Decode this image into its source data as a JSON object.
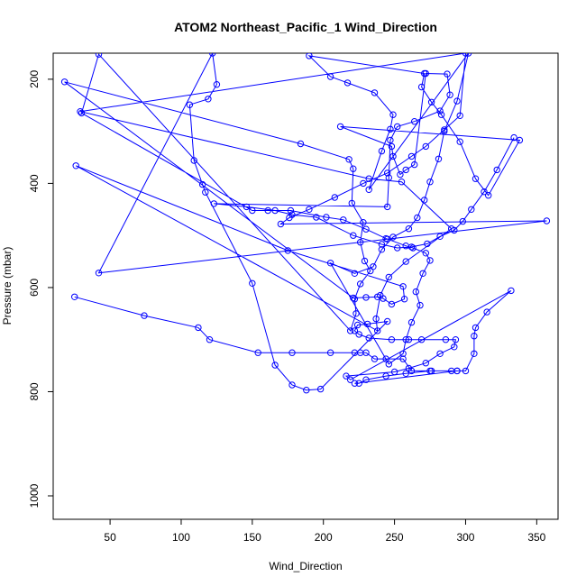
{
  "chart_data": {
    "type": "scatter",
    "title": "ATOM2 Northeast_Pacific_1 Wind_Direction",
    "xlabel": "Wind_Direction",
    "ylabel": "Pressure (mbar)",
    "xlim": [
      10,
      365
    ],
    "ylim": [
      1045,
      150
    ],
    "y_reversed": true,
    "x_ticks": [
      50,
      100,
      150,
      200,
      250,
      300,
      350
    ],
    "y_ticks": [
      200,
      400,
      600,
      800,
      1000
    ],
    "grid": false,
    "legend": "none",
    "colors": {
      "series": "#0000ff"
    },
    "series": [
      {
        "marker": "open-circle",
        "connected": true,
        "points": [
          [
            25,
            618
          ],
          [
            74,
            654
          ],
          [
            112,
            677
          ],
          [
            120,
            700
          ],
          [
            154,
            725
          ],
          [
            178,
            725
          ],
          [
            205,
            725
          ],
          [
            222,
            725
          ],
          [
            226,
            725
          ],
          [
            230,
            725
          ],
          [
            236,
            737
          ],
          [
            244,
            737
          ],
          [
            256,
            737
          ],
          [
            262,
            760
          ],
          [
            276,
            760
          ],
          [
            290,
            760
          ],
          [
            294,
            760
          ],
          [
            222,
            784
          ],
          [
            225,
            784
          ],
          [
            230,
            777
          ],
          [
            244,
            770
          ],
          [
            258,
            765
          ],
          [
            275,
            760
          ],
          [
            294,
            760
          ],
          [
            300,
            760
          ],
          [
            306,
            727
          ],
          [
            306,
            693
          ],
          [
            307,
            677
          ],
          [
            315,
            647
          ],
          [
            332,
            606
          ],
          [
            219,
            777
          ],
          [
            216,
            770
          ],
          [
            250,
            762
          ],
          [
            260,
            755
          ],
          [
            272,
            745
          ],
          [
            282,
            727
          ],
          [
            292,
            714
          ],
          [
            293,
            700
          ],
          [
            286,
            700
          ],
          [
            269,
            700
          ],
          [
            260,
            700
          ],
          [
            248,
            700
          ],
          [
            232,
            697
          ],
          [
            225,
            690
          ],
          [
            222,
            683
          ],
          [
            224,
            672
          ],
          [
            231,
            670
          ],
          [
            245,
            665
          ],
          [
            198,
            795
          ],
          [
            188,
            797
          ],
          [
            178,
            787
          ],
          [
            166,
            749
          ],
          [
            150,
            592
          ],
          [
            117,
            417
          ],
          [
            115,
            402
          ],
          [
            109,
            356
          ],
          [
            106,
            249
          ],
          [
            119,
            238
          ],
          [
            125,
            210
          ],
          [
            122,
            150
          ],
          [
            42,
            572
          ],
          [
            245,
            507
          ],
          [
            357,
            472
          ],
          [
            170,
            478
          ],
          [
            176,
            466
          ],
          [
            190,
            450
          ],
          [
            208,
            427
          ],
          [
            228,
            400
          ],
          [
            245,
            380
          ],
          [
            262,
            348
          ],
          [
            272,
            329
          ],
          [
            285,
            297
          ],
          [
            296,
            270
          ],
          [
            300,
            150
          ],
          [
            29,
            262
          ],
          [
            232,
            391
          ],
          [
            255,
            397
          ],
          [
            290,
            487
          ],
          [
            258,
            550
          ],
          [
            246,
            580
          ],
          [
            240,
            615
          ],
          [
            237,
            660
          ],
          [
            238,
            683
          ],
          [
            26,
            366
          ],
          [
            175,
            529
          ],
          [
            256,
            598
          ],
          [
            257,
            622
          ],
          [
            248,
            632
          ],
          [
            242,
            621
          ],
          [
            238,
            618
          ],
          [
            230,
            619
          ],
          [
            221,
            620
          ],
          [
            18,
            205
          ],
          [
            184,
            324
          ],
          [
            218,
            354
          ],
          [
            221,
            372
          ],
          [
            220,
            438
          ],
          [
            228,
            475
          ],
          [
            226,
            513
          ],
          [
            229,
            549
          ],
          [
            233,
            568
          ],
          [
            226,
            593
          ],
          [
            222,
            622
          ],
          [
            223,
            650
          ],
          [
            219,
            683
          ],
          [
            42,
            152
          ],
          [
            30,
            265
          ],
          [
            150,
            452
          ],
          [
            161,
            452
          ],
          [
            177,
            452
          ],
          [
            202,
            465
          ],
          [
            214,
            470
          ],
          [
            230,
            488
          ],
          [
            244,
            506
          ],
          [
            258,
            520
          ],
          [
            263,
            524
          ],
          [
            272,
            534
          ],
          [
            275,
            548
          ],
          [
            270,
            573
          ],
          [
            265,
            608
          ],
          [
            268,
            634
          ],
          [
            262,
            667
          ],
          [
            258,
            700
          ],
          [
            256,
            727
          ],
          [
            246,
            747
          ],
          [
            205,
            553
          ],
          [
            222,
            573
          ],
          [
            235,
            560
          ],
          [
            241,
            527
          ],
          [
            249,
            503
          ],
          [
            260,
            487
          ],
          [
            266,
            466
          ],
          [
            271,
            432
          ],
          [
            275,
            397
          ],
          [
            281,
            353
          ],
          [
            285,
            300
          ],
          [
            294,
            242
          ],
          [
            302,
            150
          ],
          [
            232,
            412
          ],
          [
            241,
            338
          ],
          [
            247,
            296
          ],
          [
            249,
            268
          ],
          [
            236,
            226
          ],
          [
            217,
            207
          ],
          [
            205,
            195
          ],
          [
            190,
            155
          ],
          [
            271,
            189
          ],
          [
            269,
            215
          ],
          [
            276,
            244
          ],
          [
            283,
            268
          ],
          [
            296,
            320
          ],
          [
            307,
            391
          ],
          [
            316,
            423
          ],
          [
            338,
            317
          ],
          [
            212,
            291
          ],
          [
            248,
            329
          ],
          [
            249,
            348
          ],
          [
            254,
            383
          ],
          [
            258,
            374
          ],
          [
            264,
            364
          ],
          [
            272,
            189
          ],
          [
            287,
            190
          ],
          [
            289,
            230
          ],
          [
            282,
            261
          ],
          [
            264,
            281
          ],
          [
            252,
            291
          ],
          [
            247,
            317
          ],
          [
            246,
            389
          ],
          [
            245,
            445
          ],
          [
            123,
            439
          ],
          [
            146,
            445
          ],
          [
            166,
            452
          ],
          [
            178,
            460
          ],
          [
            195,
            465
          ],
          [
            221,
            500
          ],
          [
            241,
            517
          ],
          [
            252,
            524
          ],
          [
            262,
            522
          ],
          [
            273,
            516
          ],
          [
            282,
            502
          ],
          [
            292,
            490
          ],
          [
            298,
            473
          ],
          [
            304,
            450
          ],
          [
            313,
            416
          ],
          [
            322,
            374
          ],
          [
            334,
            312
          ]
        ]
      }
    ]
  }
}
